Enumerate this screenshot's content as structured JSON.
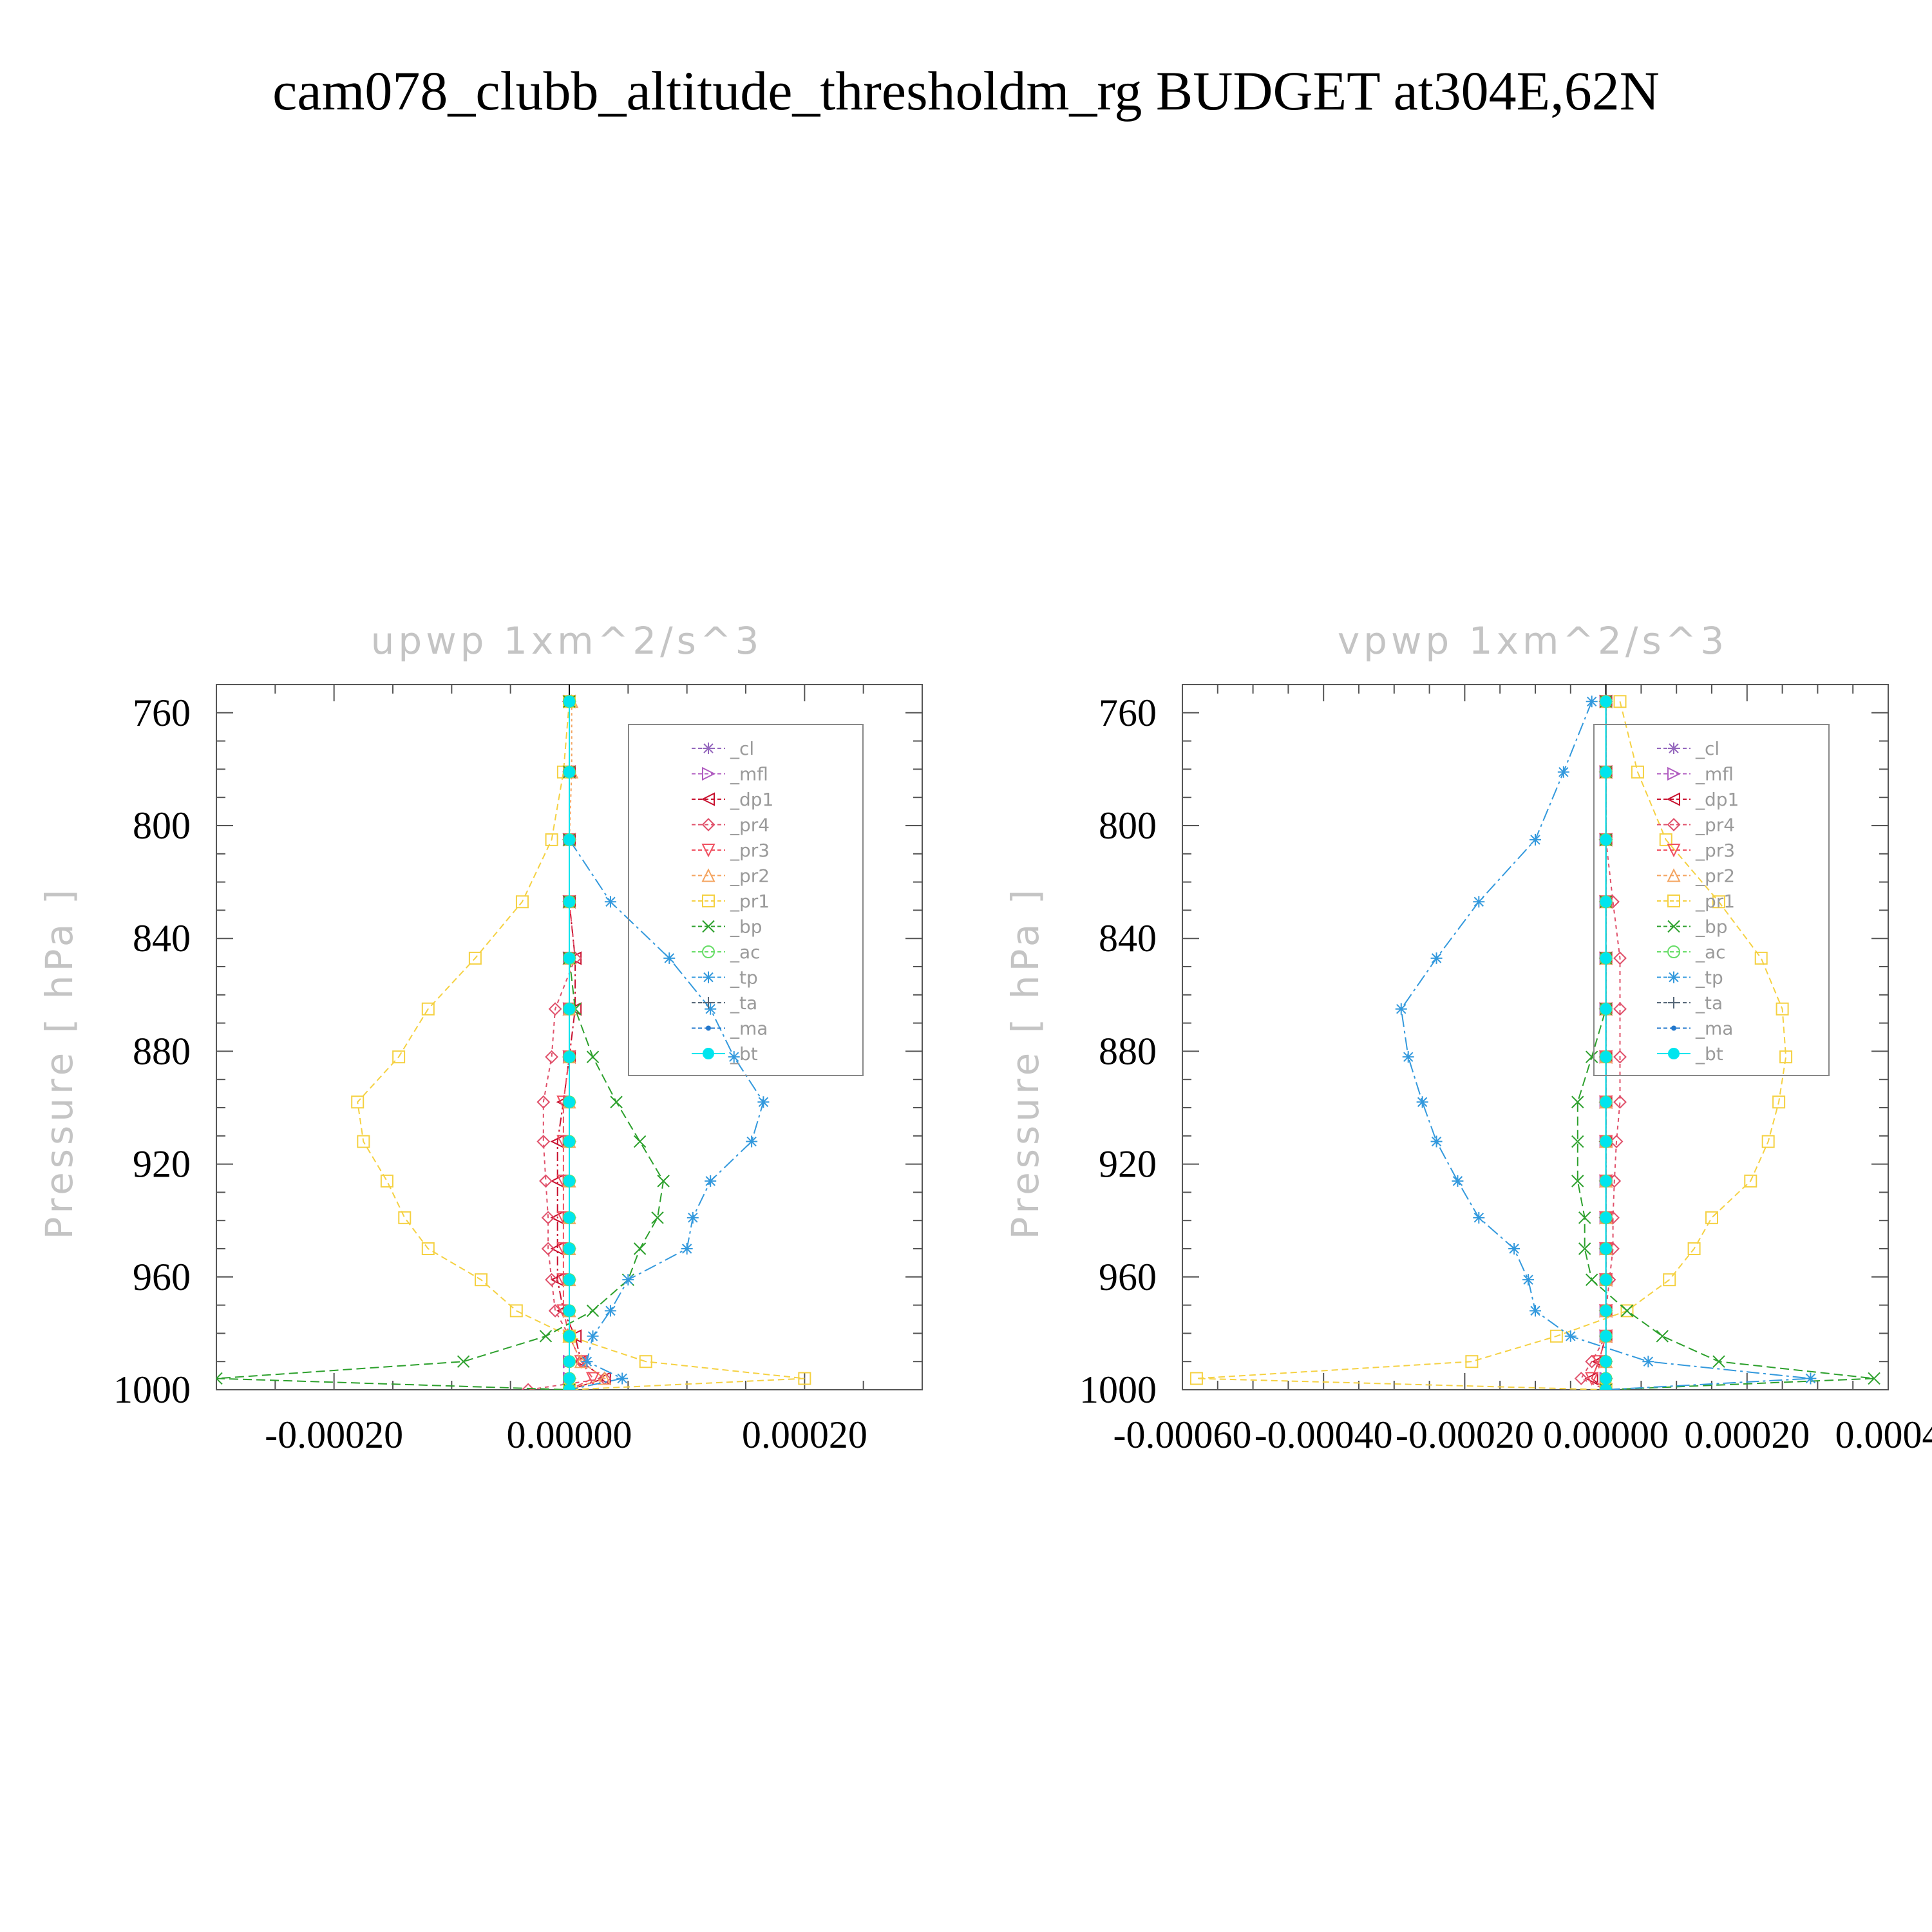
{
  "main_title": "cam078_clubb_altitude_thresholdm_rg  BUDGET at304E,62N",
  "legend": [
    {
      "label": "_cl",
      "color": "#9467bd",
      "marker": "star"
    },
    {
      "label": "_mfl",
      "color": "#b05cc0",
      "marker": "tri-right"
    },
    {
      "label": "_dp1",
      "color": "#c8102e",
      "marker": "tri-left"
    },
    {
      "label": "_pr4",
      "color": "#e0506a",
      "marker": "diamond"
    },
    {
      "label": "_pr3",
      "color": "#f05060",
      "marker": "tri-down"
    },
    {
      "label": "_pr2",
      "color": "#f4a460",
      "marker": "tri-up"
    },
    {
      "label": "_pr1",
      "color": "#f5d142",
      "marker": "square"
    },
    {
      "label": "_bp",
      "color": "#2ca02c",
      "marker": "x"
    },
    {
      "label": "_ac",
      "color": "#66dd66",
      "marker": "circle"
    },
    {
      "label": "_tp",
      "color": "#3399dd",
      "marker": "asterisk"
    },
    {
      "label": "_ta",
      "color": "#556677",
      "marker": "plus"
    },
    {
      "label": "_ma",
      "color": "#2277cc",
      "marker": "dot"
    },
    {
      "label": "_bt",
      "color": "#00e5ee",
      "marker": "filled-circle"
    }
  ],
  "chart_data": [
    {
      "type": "line",
      "title": "upwp    1xm^2/s^3",
      "ylabel": "Pressure  [ hPa ]",
      "xlim": [
        -0.0003,
        0.0003
      ],
      "ylim": [
        1000,
        750
      ],
      "xticks": [
        -0.0002,
        0.0,
        0.0002
      ],
      "xtick_labels": [
        "-0.00020",
        "0.00000",
        "0.00020"
      ],
      "yticks": [
        760,
        800,
        840,
        880,
        920,
        960,
        1000
      ],
      "ytick_labels": [
        "760",
        "800",
        "840",
        "880",
        "920",
        "960",
        "1000"
      ],
      "legend_position": "upper-right",
      "levels": [
        756,
        781,
        805,
        827,
        847,
        865,
        882,
        898,
        912,
        926,
        939,
        950,
        961,
        972,
        981,
        990,
        996,
        1000
      ],
      "series": [
        {
          "name": "_cl",
          "values": [
            0,
            0,
            0,
            0,
            0,
            0,
            0,
            0,
            0,
            0,
            0,
            0,
            0,
            0,
            0,
            0,
            0,
            0
          ]
        },
        {
          "name": "_mfl",
          "values": [
            0,
            0,
            0,
            0,
            0,
            0,
            0,
            0,
            0,
            0,
            0,
            0,
            0,
            0,
            0,
            0,
            0,
            0
          ]
        },
        {
          "name": "_dp1",
          "values": [
            0,
            0,
            0,
            0,
            5e-06,
            5e-06,
            0,
            -5e-06,
            -1e-05,
            -1e-05,
            -1e-05,
            -1e-05,
            -1e-05,
            -5e-06,
            5e-06,
            1e-05,
            3e-05,
            0
          ]
        },
        {
          "name": "_pr4",
          "values": [
            0,
            0,
            0,
            0,
            5e-06,
            -1.2e-05,
            -1.5e-05,
            -2.2e-05,
            -2.2e-05,
            -2e-05,
            -1.8e-05,
            -1.8e-05,
            -1.5e-05,
            -1.2e-05,
            0,
            1e-05,
            3e-05,
            -3.5e-05
          ]
        },
        {
          "name": "_pr3",
          "values": [
            0,
            0,
            0,
            0,
            0,
            0,
            0,
            -5e-06,
            -5e-06,
            -5e-06,
            -5e-06,
            -5e-06,
            -5e-06,
            -5e-06,
            0,
            1e-05,
            2e-05,
            0
          ]
        },
        {
          "name": "_pr2",
          "values": [
            2e-06,
            2e-06,
            0,
            0,
            0,
            0,
            0,
            0,
            0,
            0,
            0,
            0,
            0,
            0,
            0,
            1e-05,
            3e-05,
            0
          ]
        },
        {
          "name": "_pr1",
          "values": [
            0,
            -5e-06,
            -1.5e-05,
            -4e-05,
            -8e-05,
            -0.00012,
            -0.000145,
            -0.00018,
            -0.000175,
            -0.000155,
            -0.00014,
            -0.00012,
            -7.5e-05,
            -4.5e-05,
            0,
            6.5e-05,
            0.0002,
            0
          ]
        },
        {
          "name": "_bp",
          "values": [
            0,
            0,
            0,
            0,
            0,
            5e-06,
            2e-05,
            4e-05,
            6e-05,
            8e-05,
            7.5e-05,
            6e-05,
            5e-05,
            2e-05,
            -2e-05,
            -9e-05,
            -0.0003,
            0
          ]
        },
        {
          "name": "_ac",
          "values": [
            0,
            0,
            0,
            0,
            0,
            0,
            0,
            0,
            0,
            0,
            0,
            0,
            0,
            0,
            0,
            0,
            0,
            0
          ]
        },
        {
          "name": "_tp",
          "values": [
            0,
            0,
            0,
            3.5e-05,
            8.5e-05,
            0.00012,
            0.00014,
            0.000165,
            0.000155,
            0.00012,
            0.000105,
            0.0001,
            5e-05,
            3.5e-05,
            2e-05,
            1.5e-05,
            4.5e-05,
            0
          ]
        },
        {
          "name": "_ta",
          "values": [
            0,
            0,
            0,
            0,
            0,
            0,
            0,
            0,
            0,
            0,
            0,
            0,
            0,
            0,
            0,
            0,
            0,
            0
          ]
        },
        {
          "name": "_ma",
          "values": [
            0,
            0,
            0,
            0,
            0,
            0,
            0,
            0,
            0,
            0,
            0,
            0,
            0,
            0,
            0,
            0,
            0,
            0
          ]
        },
        {
          "name": "_bt",
          "values": [
            0,
            0,
            0,
            0,
            0,
            0,
            0,
            0,
            0,
            0,
            0,
            0,
            0,
            0,
            0,
            0,
            0,
            0
          ]
        }
      ]
    },
    {
      "type": "line",
      "title": "vpwp    1xm^2/s^3",
      "ylabel": "Pressure  [ hPa ]",
      "xlim": [
        -0.0006,
        0.0004
      ],
      "ylim": [
        1000,
        750
      ],
      "xticks": [
        -0.0006,
        -0.0004,
        -0.0002,
        0.0,
        0.0002,
        0.0004
      ],
      "xtick_labels": [
        "-0.00060",
        "-0.00040",
        "-0.00020",
        "0.00000",
        "0.00020",
        "0.0004"
      ],
      "yticks": [
        760,
        800,
        840,
        880,
        920,
        960,
        1000
      ],
      "ytick_labels": [
        "760",
        "800",
        "840",
        "880",
        "920",
        "960",
        "1000"
      ],
      "legend_position": "upper-right",
      "levels": [
        756,
        781,
        805,
        827,
        847,
        865,
        882,
        898,
        912,
        926,
        939,
        950,
        961,
        972,
        981,
        990,
        996,
        1000
      ],
      "series": [
        {
          "name": "_cl",
          "values": [
            0,
            0,
            0,
            0,
            0,
            0,
            0,
            0,
            0,
            0,
            0,
            0,
            0,
            0,
            0,
            0,
            0,
            0
          ]
        },
        {
          "name": "_mfl",
          "values": [
            0,
            0,
            0,
            0,
            0,
            0,
            0,
            0,
            0,
            0,
            0,
            0,
            0,
            0,
            0,
            0,
            0,
            0
          ]
        },
        {
          "name": "_dp1",
          "values": [
            0,
            0,
            0,
            0,
            0,
            0,
            0,
            0,
            0,
            0,
            0,
            0,
            0,
            0,
            0,
            -1e-05,
            -2e-05,
            0
          ]
        },
        {
          "name": "_pr4",
          "values": [
            0,
            0,
            0,
            1e-05,
            2e-05,
            2e-05,
            2e-05,
            2e-05,
            1.5e-05,
            1.2e-05,
            1e-05,
            1e-05,
            5e-06,
            0,
            0,
            -2e-05,
            -3.5e-05,
            0
          ]
        },
        {
          "name": "_pr3",
          "values": [
            0,
            0,
            0,
            0,
            0,
            0,
            0,
            0,
            0,
            0,
            0,
            0,
            0,
            0,
            0,
            -1e-05,
            -2e-05,
            0
          ]
        },
        {
          "name": "_pr2",
          "values": [
            0,
            0,
            0,
            0,
            0,
            0,
            0,
            0,
            0,
            0,
            0,
            0,
            0,
            0,
            0,
            0,
            0,
            0
          ]
        },
        {
          "name": "_pr1",
          "values": [
            2e-05,
            4.5e-05,
            8.5e-05,
            0.00016,
            0.00022,
            0.00025,
            0.000255,
            0.000245,
            0.00023,
            0.000205,
            0.00015,
            0.000125,
            9e-05,
            3e-05,
            -7e-05,
            -0.00019,
            -0.00058,
            0
          ]
        },
        {
          "name": "_bp",
          "values": [
            0,
            0,
            0,
            0,
            0,
            0,
            -2e-05,
            -4e-05,
            -4e-05,
            -4e-05,
            -3e-05,
            -3e-05,
            -2e-05,
            3e-05,
            8e-05,
            0.00016,
            0.00038,
            0
          ]
        },
        {
          "name": "_ac",
          "values": [
            0,
            0,
            0,
            0,
            0,
            0,
            0,
            0,
            0,
            0,
            0,
            0,
            0,
            0,
            0,
            0,
            0,
            0
          ]
        },
        {
          "name": "_tp",
          "values": [
            -2e-05,
            -6e-05,
            -0.0001,
            -0.00018,
            -0.00024,
            -0.00029,
            -0.00028,
            -0.00026,
            -0.00024,
            -0.00021,
            -0.00018,
            -0.00013,
            -0.00011,
            -0.0001,
            -5e-05,
            6e-05,
            0.00029,
            0
          ]
        },
        {
          "name": "_ta",
          "values": [
            0,
            0,
            0,
            0,
            0,
            0,
            0,
            0,
            0,
            0,
            0,
            0,
            0,
            0,
            0,
            0,
            0,
            0
          ]
        },
        {
          "name": "_ma",
          "values": [
            0,
            0,
            0,
            0,
            0,
            0,
            0,
            0,
            0,
            0,
            0,
            0,
            0,
            0,
            0,
            0,
            0,
            0
          ]
        },
        {
          "name": "_bt",
          "values": [
            0,
            0,
            0,
            0,
            0,
            0,
            0,
            0,
            0,
            0,
            0,
            0,
            0,
            0,
            0,
            0,
            0,
            0
          ]
        }
      ]
    }
  ]
}
